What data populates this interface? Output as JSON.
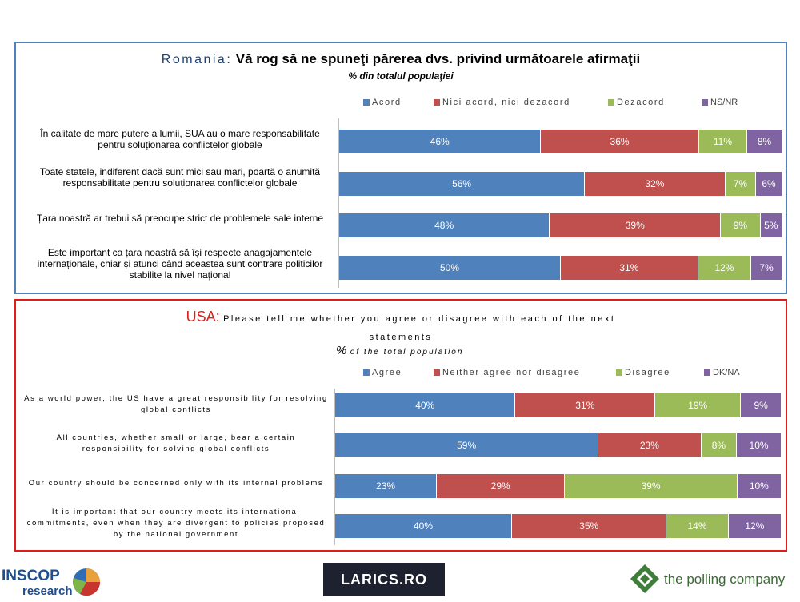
{
  "colors": {
    "agree": "#4f81bd",
    "neutral": "#c0504d",
    "disagree": "#9bbb59",
    "dk": "#8064a2"
  },
  "ro": {
    "country": "Romania:",
    "question": "Vă rog să ne spuneţi părerea dvs. privind următoarele afirmaţii",
    "subtitle": "% din totalul populaţiei"
  },
  "us": {
    "country": "USA:",
    "question_line1": "Please tell me whether you agree or disagree with each of the next",
    "question_line2": "statements",
    "subtitle_pct": "%",
    "subtitle_text": "of the total population"
  },
  "chart_data": [
    {
      "type": "bar",
      "orientation": "horizontal",
      "stacked": true,
      "categories": [
        "În calitate de mare putere a lumii, SUA au o mare responsabilitate pentru soluționarea conflictelor globale",
        "Toate statele, indiferent dacă sunt mici sau mari, poartă o anumită responsabilitate pentru soluționarea conflictelor globale",
        "Țara noastră ar trebui să preocupe strict de problemele sale interne",
        "Este important ca țara noastră să își respecte anagajamentele internaționale, chiar și atunci când aceastea sunt contrare politicilor stabilite la nivel național"
      ],
      "series": [
        {
          "name": "Acord",
          "values": [
            46,
            56,
            48,
            50
          ]
        },
        {
          "name": "Nici acord, nici dezacord",
          "values": [
            36,
            32,
            39,
            31
          ]
        },
        {
          "name": "Dezacord",
          "values": [
            11,
            7,
            9,
            12
          ]
        },
        {
          "name": "NS/NR",
          "values": [
            8,
            6,
            5,
            7
          ]
        }
      ],
      "value_suffix": "%",
      "legend": "top"
    },
    {
      "type": "bar",
      "orientation": "horizontal",
      "stacked": true,
      "categories": [
        "As a world power, the US have a great responsibility for resolving global conflicts",
        "All countries, whether small or large, bear a certain responsibility for solving global conflicts",
        "Our country should be concerned only with its internal problems",
        "It is important that our country meets its international commitments, even when they are divergent to policies proposed by the national government"
      ],
      "series": [
        {
          "name": "Agree",
          "values": [
            40,
            59,
            23,
            40
          ]
        },
        {
          "name": "Neither agree nor disagree",
          "values": [
            31,
            23,
            29,
            35
          ]
        },
        {
          "name": "Disagree",
          "values": [
            19,
            8,
            39,
            14
          ]
        },
        {
          "name": "DK/NA",
          "values": [
            9,
            10,
            10,
            12
          ]
        }
      ],
      "value_suffix": "%",
      "legend": "top"
    }
  ],
  "logos": {
    "inscop_line1": "INSCOP",
    "inscop_line2": "research",
    "larics": "LARICS.RO",
    "polling": "the polling company"
  }
}
